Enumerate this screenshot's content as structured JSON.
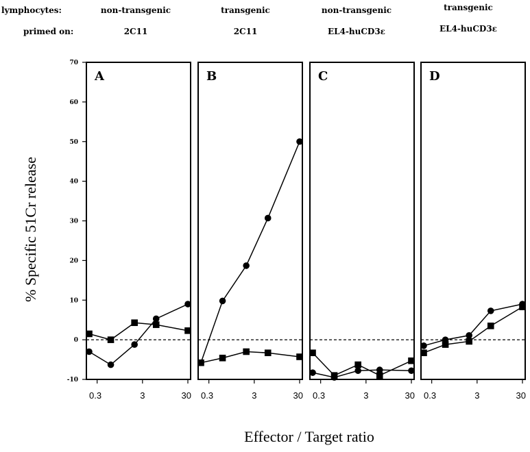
{
  "header": {
    "row1_label": "lymphocytes:",
    "row2_label": "primed on:",
    "columns": [
      {
        "lymphocytes": "non-transgenic",
        "primed_on": "2C11"
      },
      {
        "lymphocytes": "transgenic",
        "primed_on": "2C11"
      },
      {
        "lymphocytes": "non-transgenic",
        "primed_on": "EL4-huCD3ε"
      },
      {
        "lymphocytes": "transgenic",
        "primed_on": "EL4-huCD3ε"
      }
    ]
  },
  "chart_data": {
    "type": "line",
    "ylabel": "% Specific 51Cr release",
    "xlabel": "Effector / Target ratio",
    "ylim": [
      -10,
      70
    ],
    "yticks": [
      -10,
      0,
      10,
      20,
      30,
      40,
      50,
      60,
      70
    ],
    "x_scale": "log",
    "xlim": [
      0.2,
      30
    ],
    "xticks": [
      0.3,
      3,
      30
    ],
    "x_tick_labels": [
      "0.3",
      "3",
      "30"
    ],
    "x": [
      0.2,
      0.6,
      2,
      6,
      30
    ],
    "baseline": 0,
    "panels": [
      {
        "label": "A",
        "series": [
          {
            "marker": "square",
            "values": [
              1.5,
              0,
              4.3,
              3.8,
              2.3
            ]
          },
          {
            "marker": "circle",
            "values": [
              -3,
              -6.3,
              -1.2,
              5.3,
              9
            ]
          }
        ]
      },
      {
        "label": "B",
        "series": [
          {
            "marker": "circle",
            "values": [
              -5.8,
              9.8,
              18.7,
              30.7,
              50
            ]
          },
          {
            "marker": "square",
            "values": [
              -5.8,
              -4.6,
              -3,
              -3.3,
              -4.3
            ]
          }
        ]
      },
      {
        "label": "C",
        "series": [
          {
            "marker": "square",
            "values": [
              -3.3,
              -9,
              -6.3,
              -9,
              -5.3
            ]
          },
          {
            "marker": "circle",
            "values": [
              -8.3,
              -9.5,
              -7.8,
              -7.6,
              -7.8
            ]
          }
        ]
      },
      {
        "label": "D",
        "series": [
          {
            "marker": "circle",
            "values": [
              -1.5,
              0,
              1.1,
              7.3,
              9
            ]
          },
          {
            "marker": "square",
            "values": [
              -3.3,
              -1.2,
              -0.4,
              3.5,
              8.3
            ]
          }
        ]
      }
    ]
  }
}
